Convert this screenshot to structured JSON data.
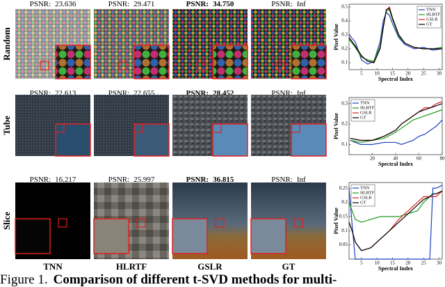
{
  "figure": {
    "columns": [
      "TNN",
      "HLRTF",
      "GSLR",
      "GT"
    ],
    "psnr_label": "PSNR:",
    "rows": [
      {
        "label": "Random",
        "psnr": [
          "23.636",
          "29.471",
          "34.750",
          "Inf"
        ]
      },
      {
        "label": "Tube",
        "psnr": [
          "22.613",
          "22.655",
          "28.452",
          "Inf"
        ]
      },
      {
        "label": "Slice",
        "psnr": [
          "16.217",
          "25.997",
          "36.815",
          "Inf"
        ]
      }
    ],
    "caption": {
      "number": "Figure 1.",
      "text": "Comparison of different t-SVD methods for multi-"
    }
  },
  "chart_data": [
    {
      "type": "line",
      "xlabel": "Spectral Index",
      "ylabel": "Pixel Value",
      "legend": "upper right",
      "x": [
        1,
        3,
        5,
        7,
        9,
        11,
        12,
        13,
        14,
        15,
        17,
        19,
        22,
        25,
        28,
        31
      ],
      "xlim": [
        1,
        31
      ],
      "ylim": [
        0.05,
        0.52
      ],
      "xticks": [
        5,
        10,
        15,
        20,
        25,
        30
      ],
      "yticks": [
        0.1,
        0.2,
        0.3,
        0.4,
        0.5
      ],
      "series": [
        {
          "name": "TNN",
          "color": "#1f3fbf",
          "values": [
            0.3,
            0.25,
            0.12,
            0.09,
            0.11,
            0.25,
            0.4,
            0.46,
            0.44,
            0.38,
            0.28,
            0.23,
            0.2,
            0.21,
            0.19,
            0.2
          ]
        },
        {
          "name": "HLRTF",
          "color": "#1a9a1a",
          "values": [
            0.27,
            0.21,
            0.14,
            0.12,
            0.11,
            0.22,
            0.36,
            0.47,
            0.48,
            0.41,
            0.29,
            0.24,
            0.21,
            0.2,
            0.2,
            0.21
          ]
        },
        {
          "name": "GSLR",
          "color": "#e02020",
          "values": [
            0.28,
            0.22,
            0.15,
            0.11,
            0.1,
            0.2,
            0.35,
            0.48,
            0.5,
            0.42,
            0.3,
            0.24,
            0.21,
            0.2,
            0.2,
            0.2
          ]
        },
        {
          "name": "GT",
          "color": "#000000",
          "values": [
            0.28,
            0.22,
            0.15,
            0.11,
            0.1,
            0.2,
            0.35,
            0.48,
            0.49,
            0.42,
            0.3,
            0.24,
            0.21,
            0.2,
            0.2,
            0.2
          ]
        }
      ]
    },
    {
      "type": "line",
      "xlabel": "Spectral Index",
      "ylabel": "Pixel Value",
      "legend": "upper left",
      "x": [
        1,
        10,
        20,
        30,
        40,
        45,
        50,
        55,
        60,
        65,
        70,
        75,
        80
      ],
      "xlim": [
        0,
        80
      ],
      "ylim": [
        0.05,
        0.33
      ],
      "xticks": [
        20,
        40,
        60,
        80
      ],
      "yticks": [
        0.1,
        0.2,
        0.3
      ],
      "series": [
        {
          "name": "TNN",
          "color": "#1f3fbf",
          "values": [
            0.12,
            0.1,
            0.1,
            0.11,
            0.11,
            0.1,
            0.11,
            0.12,
            0.14,
            0.15,
            0.17,
            0.19,
            0.22
          ]
        },
        {
          "name": "HLRTF",
          "color": "#1a9a1a",
          "values": [
            0.12,
            0.11,
            0.12,
            0.13,
            0.16,
            0.18,
            0.2,
            0.22,
            0.23,
            0.24,
            0.25,
            0.26,
            0.27
          ]
        },
        {
          "name": "GSLR",
          "color": "#e02020",
          "values": [
            0.13,
            0.12,
            0.12,
            0.14,
            0.17,
            0.2,
            0.22,
            0.24,
            0.26,
            0.28,
            0.28,
            0.3,
            0.31
          ]
        },
        {
          "name": "GT",
          "color": "#000000",
          "values": [
            0.13,
            0.12,
            0.12,
            0.14,
            0.17,
            0.2,
            0.22,
            0.24,
            0.26,
            0.27,
            0.28,
            0.29,
            0.3
          ]
        }
      ]
    },
    {
      "type": "line",
      "xlabel": "Spectral Index",
      "ylabel": "Pixel Value",
      "legend": "upper left",
      "x": [
        1,
        2,
        3,
        5,
        8,
        11,
        14,
        17,
        20,
        23,
        25,
        27,
        28,
        29,
        31
      ],
      "xlim": [
        1,
        31
      ],
      "ylim": [
        0,
        0.27
      ],
      "xticks": [
        5,
        10,
        15,
        20,
        25,
        30
      ],
      "yticks": [
        0.05,
        0.1,
        0.15,
        0.2,
        0.25
      ],
      "series": [
        {
          "name": "TNN",
          "color": "#1f3fbf",
          "values": [
            0.25,
            0.12,
            0.0,
            0.0,
            0.0,
            0.0,
            0.0,
            0.0,
            0.0,
            0.0,
            0.0,
            0.0,
            0.25,
            0.25,
            0.26
          ]
        },
        {
          "name": "HLRTF",
          "color": "#1a9a1a",
          "values": [
            0.2,
            0.17,
            0.14,
            0.13,
            0.14,
            0.15,
            0.15,
            0.15,
            0.16,
            0.17,
            0.2,
            0.22,
            0.23,
            0.23,
            0.24
          ]
        },
        {
          "name": "GSLR",
          "color": "#e02020",
          "values": [
            0.13,
            0.1,
            0.06,
            0.03,
            0.04,
            0.07,
            0.1,
            0.14,
            0.17,
            0.2,
            0.22,
            0.22,
            0.22,
            0.22,
            0.24
          ]
        },
        {
          "name": "GT",
          "color": "#000000",
          "values": [
            0.13,
            0.1,
            0.06,
            0.03,
            0.04,
            0.07,
            0.1,
            0.13,
            0.16,
            0.19,
            0.21,
            0.22,
            0.23,
            0.23,
            0.24
          ]
        }
      ]
    }
  ]
}
